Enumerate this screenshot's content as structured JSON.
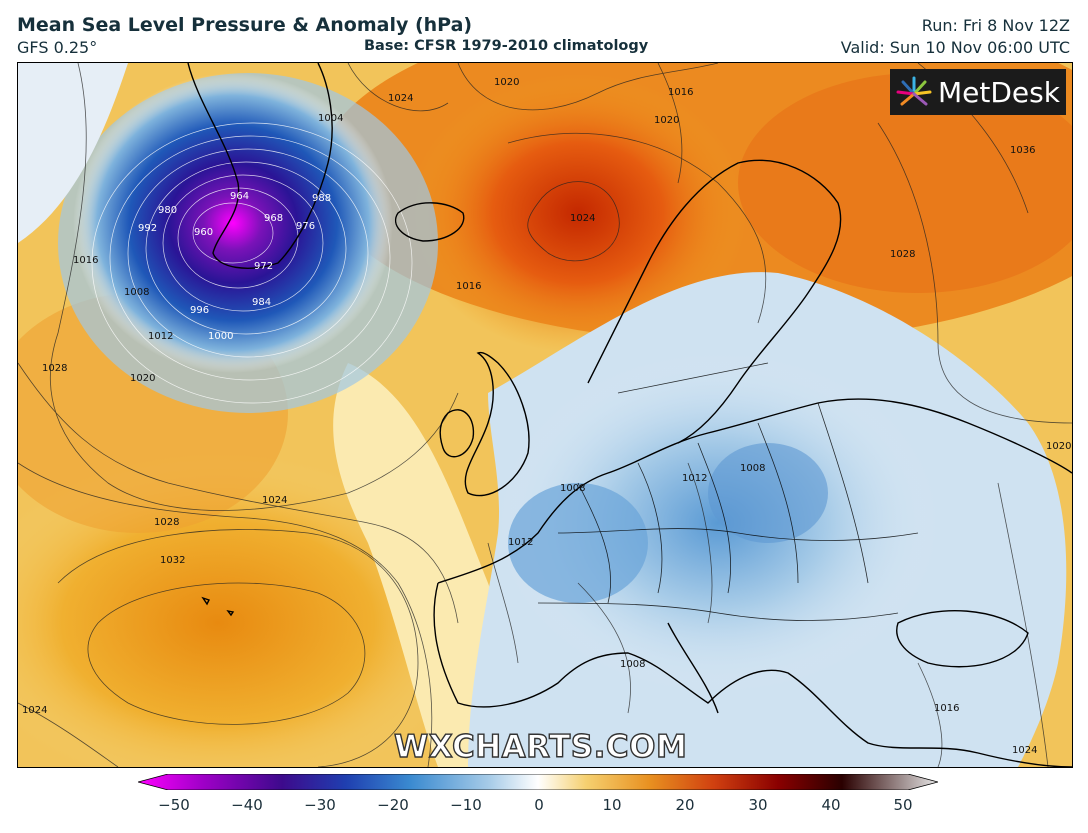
{
  "header": {
    "title": "Mean Sea Level Pressure & Anomaly (hPa)",
    "model": "GFS 0.25°",
    "base": "Base: CFSR 1979-2010 climatology",
    "run": "Run: Fri 8 Nov 12Z",
    "valid": "Valid: Sun 10 Nov 06:00 UTC"
  },
  "branding": {
    "logo_text": "MetDesk",
    "watermark": "WXCHARTS.COM"
  },
  "map": {
    "region": "North Atlantic and Europe",
    "isobar_labels": [
      "1024",
      "1020",
      "1016",
      "1020",
      "1024",
      "1036",
      "1028",
      "1004",
      "988",
      "976",
      "968",
      "964",
      "960",
      "972",
      "980",
      "984",
      "992",
      "996",
      "1000",
      "1008",
      "1012",
      "1016",
      "1020",
      "1028",
      "1024",
      "1028",
      "1032",
      "1024",
      "1016",
      "1008",
      "1012",
      "1008",
      "1008",
      "1016",
      "1012",
      "1024",
      "1020"
    ]
  },
  "colorbar": {
    "ticks": [
      "−50",
      "−40",
      "−30",
      "−20",
      "−10",
      "0",
      "10",
      "20",
      "30",
      "40",
      "50"
    ],
    "colors": {
      "min": "#ff00ff",
      "deep_low": "#3d0a8c",
      "low": "#1f58b8",
      "mid_low": "#7fb3dc",
      "neutral": "#ffffff",
      "mid_high": "#f0c040",
      "high": "#e46a10",
      "deep_high": "#7a0000",
      "max": "#d8d8d8"
    }
  }
}
